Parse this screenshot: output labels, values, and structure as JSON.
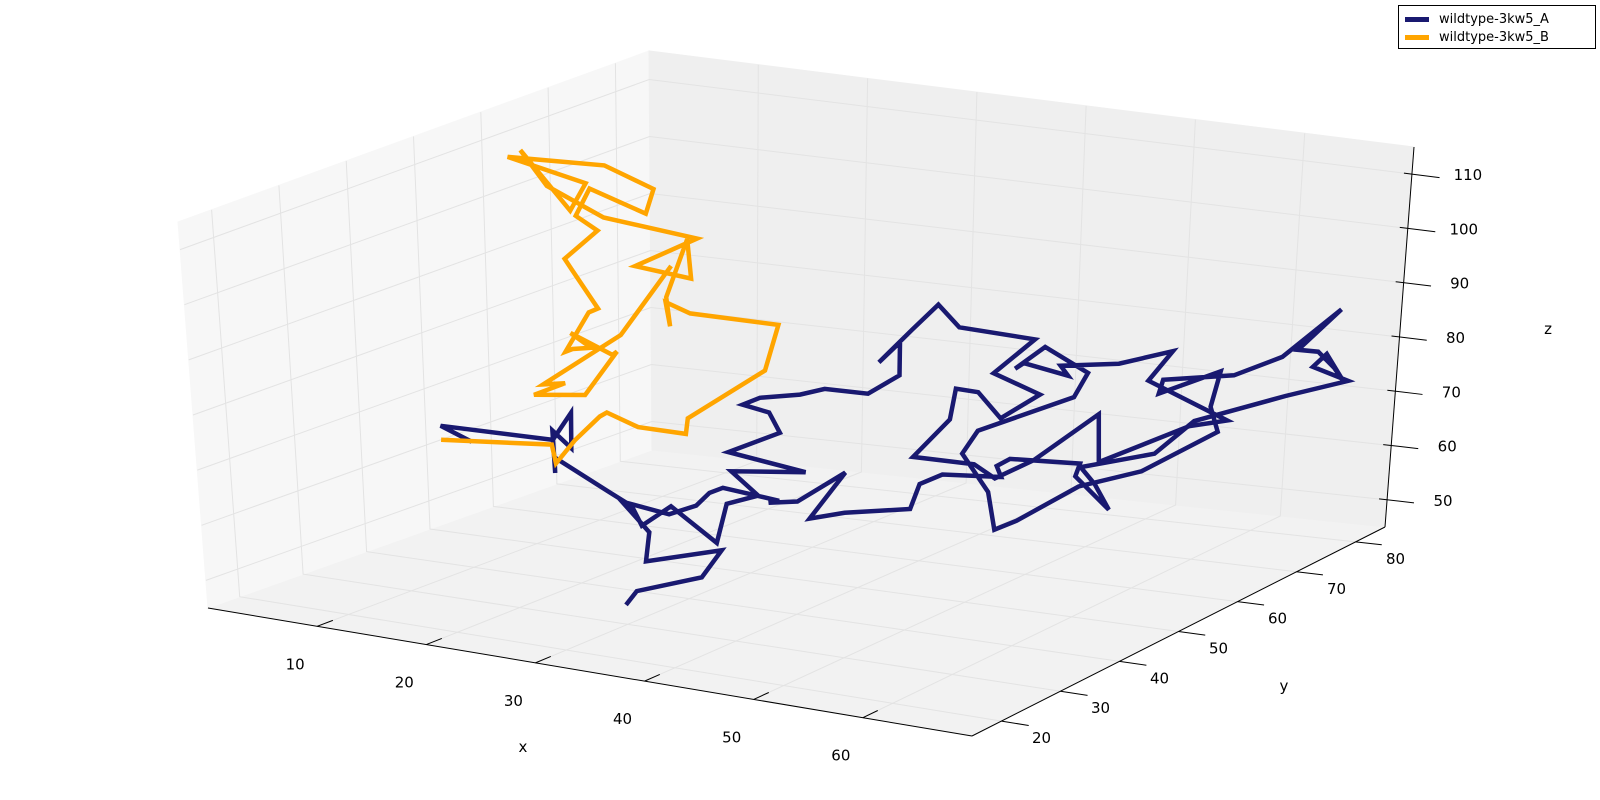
{
  "chart_data": {
    "type": "line3d",
    "xlabel": "x",
    "ylabel": "y",
    "zlabel": "z",
    "xlim": [
      0,
      70
    ],
    "ylim": [
      15,
      85
    ],
    "zlim": [
      45,
      115
    ],
    "x_ticks": [
      10,
      20,
      30,
      40,
      50,
      60
    ],
    "y_ticks": [
      20,
      30,
      40,
      50,
      60,
      70,
      80
    ],
    "z_ticks": [
      50,
      60,
      70,
      80,
      90,
      100,
      110
    ],
    "grid": true,
    "legend_position": "top-right",
    "series": [
      {
        "name": "wildtype-3kw5_A",
        "color": "#191970",
        "points": [
          [
            20.2,
            23.1,
            77.9
          ],
          [
            16.1,
            25.4,
            78.5
          ],
          [
            27.4,
            23.3,
            80.3
          ],
          [
            26.1,
            28.5,
            82.4
          ],
          [
            27.2,
            26.5,
            77.3
          ],
          [
            23.8,
            29.5,
            78.1
          ],
          [
            28.8,
            21.1,
            75.8
          ],
          [
            26.3,
            25.4,
            75.9
          ],
          [
            35.2,
            18.2,
            75.8
          ],
          [
            35.6,
            21.2,
            71.9
          ],
          [
            36.3,
            21.5,
            68.5
          ],
          [
            36.7,
            25.5,
            70.2
          ],
          [
            42.9,
            21.8,
            67.3
          ],
          [
            40.9,
            27.0,
            71.2
          ],
          [
            41.9,
            30.3,
            71.4
          ],
          [
            40.6,
            28.3,
            76.3
          ],
          [
            45.9,
            30.8,
            76.5
          ],
          [
            37.0,
            34.2,
            75.9
          ],
          [
            40.6,
            36.1,
            79.5
          ],
          [
            39.4,
            36.5,
            82.6
          ],
          [
            36.1,
            38.1,
            82.3
          ],
          [
            35.5,
            41.9,
            81.6
          ],
          [
            39.7,
            40.9,
            83.8
          ],
          [
            39.1,
            45.9,
            82.3
          ],
          [
            45.5,
            41.5,
            85.3
          ],
          [
            45.7,
            46.2,
            86.4
          ],
          [
            43.0,
            51.0,
            89.3
          ],
          [
            42.3,
            48.9,
            86.5
          ],
          [
            42.6,
            53.6,
            90.2
          ],
          [
            43.2,
            56.7,
            93.4
          ],
          [
            46.1,
            55.0,
            90.9
          ],
          [
            52.6,
            55.7,
            90.1
          ],
          [
            51.6,
            50.9,
            86.1
          ],
          [
            56.3,
            50.1,
            83.9
          ],
          [
            55.1,
            45.9,
            81.4
          ],
          [
            51.8,
            48.1,
            84.1
          ],
          [
            49.6,
            48.4,
            84.0
          ],
          [
            51.5,
            44.1,
            81.1
          ],
          [
            50.5,
            40.0,
            76.1
          ],
          [
            56.1,
            39.9,
            76.4
          ],
          [
            58.5,
            39.0,
            75.0
          ],
          [
            60.2,
            42.3,
            77.1
          ],
          [
            63.1,
            47.5,
            83.5
          ],
          [
            65.7,
            43.0,
            77.9
          ],
          [
            70.2,
            49.6,
            82.2
          ],
          [
            72.6,
            51.5,
            82.9
          ],
          [
            64.7,
            52.6,
            87.4
          ],
          [
            64.9,
            56.1,
            91.0
          ],
          [
            60.5,
            55.3,
            88.0
          ],
          [
            55.0,
            55.7,
            86.0
          ],
          [
            56.6,
            54.1,
            85.4
          ],
          [
            52.1,
            54.9,
            86.1
          ],
          [
            51.6,
            54.4,
            85.2
          ],
          [
            52.5,
            57.6,
            87.8
          ],
          [
            58.5,
            53.9,
            86.5
          ],
          [
            58.9,
            51.0,
            83.7
          ],
          [
            52.9,
            46.2,
            78.4
          ],
          [
            53.3,
            43.0,
            76.0
          ],
          [
            58.1,
            38.7,
            72.6
          ],
          [
            61.2,
            34.2,
            69.0
          ],
          [
            61.9,
            36.6,
            69.6
          ],
          [
            64.5,
            42.0,
            73.7
          ],
          [
            68.7,
            44.7,
            76.2
          ],
          [
            71.7,
            51.7,
            80.5
          ],
          [
            68.8,
            55.7,
            82.2
          ],
          [
            66.8,
            60.8,
            85.5
          ],
          [
            63.0,
            57.6,
            82.1
          ],
          [
            62.1,
            59.9,
            83.2
          ],
          [
            68.3,
            60.3,
            85.4
          ],
          [
            71.0,
            63.3,
            87.9
          ],
          [
            72.2,
            70.6,
            93.1
          ],
          [
            71.2,
            65.5,
            88.1
          ],
          [
            73.1,
            65.4,
            88.3
          ],
          [
            75.0,
            64.8,
            86.1
          ],
          [
            76.5,
            63.8,
            84.4
          ],
          [
            73.9,
            65.4,
            88.1
          ],
          [
            73.4,
            64.1,
            86.3
          ],
          [
            76.8,
            63.9,
            84.7
          ],
          [
            72.3,
            61.8,
            81.9
          ],
          [
            65.6,
            59.0,
            77.1
          ],
          [
            64.6,
            54.4,
            73.3
          ],
          [
            59.2,
            52.0,
            70.7
          ],
          [
            61.6,
            50.1,
            69.2
          ],
          [
            64.7,
            46.9,
            67.1
          ],
          [
            59.4,
            50.8,
            69.7
          ],
          [
            59.3,
            51.7,
            71.5
          ],
          [
            53.1,
            51.3,
            70.9
          ],
          [
            53.0,
            49.3,
            70.6
          ],
          [
            54.1,
            48.1,
            69.5
          ],
          [
            49.5,
            46.7,
            69.4
          ],
          [
            48.1,
            45.5,
            67.9
          ],
          [
            49.6,
            41.3,
            65.9
          ],
          [
            44.0,
            40.6,
            64.0
          ],
          [
            42.6,
            37.4,
            64.1
          ],
          [
            42.8,
            42.8,
            69.8
          ],
          [
            41.7,
            37.0,
            67.1
          ],
          [
            41.1,
            33.4,
            68.4
          ],
          [
            41.5,
            34.4,
            68.4
          ],
          [
            35.7,
            35.6,
            68.5
          ],
          [
            34.8,
            35.0,
            67.6
          ],
          [
            34.5,
            33.4,
            66.0
          ],
          [
            33.9,
            30.1,
            65.8
          ],
          [
            29.8,
            29.8,
            67.0
          ],
          [
            33.1,
            28.3,
            63.2
          ],
          [
            34.3,
            25.6,
            59.6
          ],
          [
            40.2,
            27.4,
            62.5
          ],
          [
            40.0,
            24.5,
            59.0
          ],
          [
            35.8,
            21.4,
            56.7
          ],
          [
            35.3,
            20.5,
            54.5
          ]
        ]
      },
      {
        "name": "wildtype-3kw5_B",
        "color": "#FFA500",
        "points": [
          [
            16.2,
            25.2,
            76.1
          ],
          [
            25.8,
            25.9,
            77.8
          ],
          [
            29.3,
            20.4,
            78.0
          ],
          [
            30.6,
            21.2,
            82.2
          ],
          [
            33.5,
            20.1,
            87.8
          ],
          [
            34.3,
            19.8,
            88.9
          ],
          [
            36.5,
            20.8,
            86.5
          ],
          [
            40.7,
            20.9,
            86.5
          ],
          [
            39.2,
            23.9,
            87.4
          ],
          [
            41.0,
            33.0,
            92.2
          ],
          [
            39.6,
            37.6,
            97.8
          ],
          [
            33.6,
            34.3,
            99.7
          ],
          [
            31.6,
            34.0,
            101.3
          ],
          [
            34.2,
            30.1,
            99.5
          ],
          [
            32.4,
            32.7,
            103.0
          ],
          [
            31.0,
            38.5,
            110.3
          ],
          [
            33.2,
            35.2,
            105.4
          ],
          [
            28.3,
            35.1,
            106.3
          ],
          [
            32.1,
            38.1,
            110.9
          ],
          [
            24.7,
            36.6,
            113.3
          ],
          [
            19.4,
            37.2,
            117.2
          ],
          [
            16.2,
            38.8,
            122.0
          ],
          [
            21.3,
            37.4,
            113.2
          ],
          [
            21.2,
            40.0,
            116.9
          ],
          [
            15.0,
            38.9,
            120.4
          ],
          [
            21.3,
            42.7,
            118.9
          ],
          [
            24.7,
            44.3,
            114.9
          ],
          [
            25.9,
            41.0,
            112.3
          ],
          [
            19.3,
            43.8,
            113.7
          ],
          [
            18.9,
            42.3,
            109.4
          ],
          [
            21.4,
            41.3,
            107.9
          ],
          [
            20.4,
            37.9,
            104.1
          ],
          [
            21.5,
            37.0,
            103.0
          ],
          [
            25.9,
            33.4,
            98.8
          ],
          [
            25.3,
            33.0,
            98.1
          ],
          [
            25.8,
            28.4,
            93.3
          ],
          [
            26.1,
            29.0,
            93.6
          ],
          [
            27.3,
            29.8,
            93.8
          ],
          [
            24.9,
            30.8,
            95.3
          ],
          [
            29.3,
            29.6,
            93.2
          ],
          [
            29.6,
            29.8,
            93.8
          ],
          [
            30.0,
            24.0,
            88.8
          ],
          [
            26.0,
            23.0,
            88.1
          ],
          [
            28.7,
            23.2,
            90.9
          ],
          [
            26.1,
            24.3,
            89.4
          ],
          [
            31.0,
            28.0,
            98.0
          ],
          [
            32.3,
            33.7,
            108.1
          ]
        ]
      }
    ]
  }
}
